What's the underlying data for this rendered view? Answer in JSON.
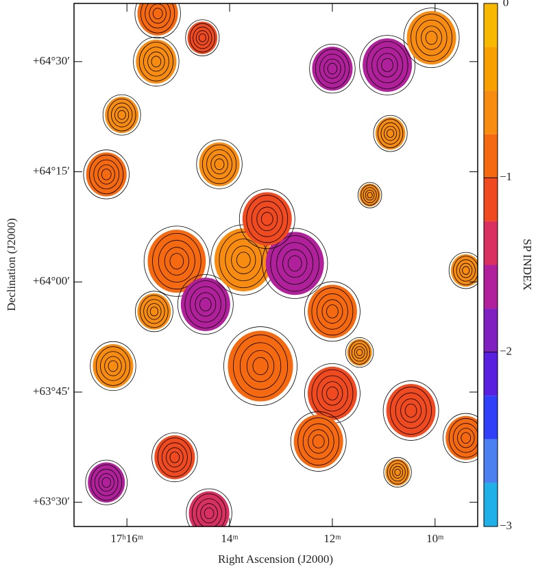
{
  "chart_data": {
    "type": "spectral-index-map",
    "xlabel": "Right Ascension (J2000)",
    "ylabel": "Declination (J2000)",
    "colorbar_label": "SP INDEX",
    "xlim": [
      17.03,
      9.17
    ],
    "xticks": [
      {
        "value": 16,
        "label": "17ʰ16ᵐ"
      },
      {
        "value": 14,
        "label": "14ᵐ"
      },
      {
        "value": 12,
        "label": "12ᵐ"
      },
      {
        "value": 10,
        "label": "10ᵐ"
      }
    ],
    "ylim": [
      63.445,
      64.632
    ],
    "yticks": [
      {
        "value": 63.5,
        "label": "+63°30′"
      },
      {
        "value": 63.75,
        "label": "+63°45′"
      },
      {
        "value": 64.0,
        "label": "+64°00′"
      },
      {
        "value": 64.25,
        "label": "+64°15′"
      },
      {
        "value": 64.5,
        "label": "+64°30′"
      }
    ],
    "clim": [
      -3,
      0
    ],
    "cticks": [
      0,
      {
        "value": -1,
        "label": "−1"
      },
      {
        "value": -2,
        "label": "−2"
      },
      {
        "value": -3,
        "label": "−3"
      }
    ],
    "colormap": [
      "#f8b800",
      "#f8a000",
      "#f78c10",
      "#f56a10",
      "#f04a20",
      "#d83060",
      "#b0209a",
      "#8020c0",
      "#5a20e0",
      "#3040f8",
      "#4a80f0",
      "#20b0e8"
    ],
    "x": [
      15.03,
      14.47,
      13.73,
      12.73,
      13.27,
      14.2,
      13.4,
      12.0,
      12.27,
      12.0,
      10.47,
      10.93,
      10.07,
      12.0,
      16.27,
      15.07,
      16.4,
      15.43,
      16.1,
      15.4,
      14.53,
      16.4,
      10.87,
      9.4,
      14.4,
      10.73,
      15.47,
      9.4,
      11.47,
      11.27
    ],
    "y": [
      64.047,
      63.949,
      64.05,
      64.042,
      64.143,
      64.267,
      63.809,
      63.747,
      63.638,
      63.933,
      63.708,
      64.492,
      64.554,
      64.484,
      63.809,
      63.602,
      63.545,
      64.5,
      64.379,
      64.609,
      64.554,
      64.244,
      64.337,
      63.646,
      63.475,
      63.568,
      63.933,
      64.026,
      63.84,
      64.197
    ],
    "values": [
      -0.8,
      -1.7,
      -0.7,
      -1.5,
      -1.2,
      -0.7,
      -0.8,
      -1.0,
      -0.8,
      -0.8,
      -1.1,
      -1.6,
      -0.7,
      -1.6,
      -0.7,
      -1.2,
      -1.5,
      -0.7,
      -0.6,
      -0.8,
      -1.1,
      -0.8,
      -0.7,
      -0.8,
      -1.4,
      -0.6,
      -0.7,
      -0.5,
      -0.6,
      -0.6
    ],
    "sizes": [
      3.3,
      2.8,
      3.3,
      3.3,
      2.8,
      2.3,
      3.7,
      2.8,
      2.8,
      2.8,
      2.8,
      2.8,
      2.8,
      2.3,
      2.3,
      2.3,
      2.1,
      2.3,
      1.9,
      2.3,
      1.7,
      2.3,
      1.7,
      2.3,
      2.3,
      1.4,
      1.9,
      1.7,
      1.4,
      1.2
    ]
  }
}
